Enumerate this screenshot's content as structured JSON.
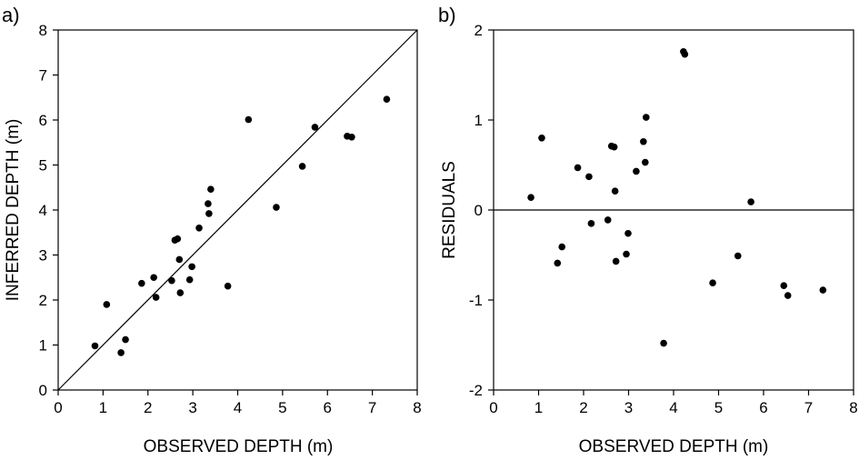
{
  "chart_data": [
    {
      "type": "scatter",
      "panel_label": "a)",
      "xlabel": "OBSERVED DEPTH (m)",
      "ylabel": "INFERRED DEPTH (m)",
      "xlim": [
        0,
        8
      ],
      "ylim": [
        0,
        8
      ],
      "xticks": [
        "0",
        "1",
        "2",
        "3",
        "4",
        "5",
        "6",
        "7",
        "8"
      ],
      "yticks": [
        "0",
        "1",
        "2",
        "3",
        "4",
        "5",
        "6",
        "7",
        "8"
      ],
      "reference_line": "y = x (1:1 line)",
      "points": [
        {
          "x": 0.82,
          "y": 0.98
        },
        {
          "x": 1.08,
          "y": 1.9
        },
        {
          "x": 1.4,
          "y": 0.83
        },
        {
          "x": 1.5,
          "y": 1.12
        },
        {
          "x": 1.86,
          "y": 2.37
        },
        {
          "x": 2.13,
          "y": 2.5
        },
        {
          "x": 2.18,
          "y": 2.06
        },
        {
          "x": 2.53,
          "y": 2.43
        },
        {
          "x": 2.6,
          "y": 3.33
        },
        {
          "x": 2.66,
          "y": 3.36
        },
        {
          "x": 2.7,
          "y": 2.9
        },
        {
          "x": 2.72,
          "y": 2.16
        },
        {
          "x": 2.93,
          "y": 2.45
        },
        {
          "x": 2.98,
          "y": 2.74
        },
        {
          "x": 3.14,
          "y": 3.6
        },
        {
          "x": 3.34,
          "y": 4.14
        },
        {
          "x": 3.36,
          "y": 3.92
        },
        {
          "x": 3.4,
          "y": 4.46
        },
        {
          "x": 3.78,
          "y": 2.31
        },
        {
          "x": 4.24,
          "y": 6.01
        },
        {
          "x": 4.86,
          "y": 4.06
        },
        {
          "x": 5.44,
          "y": 4.97
        },
        {
          "x": 5.72,
          "y": 5.84
        },
        {
          "x": 6.44,
          "y": 5.64
        },
        {
          "x": 6.54,
          "y": 5.62
        },
        {
          "x": 7.32,
          "y": 6.46
        }
      ]
    },
    {
      "type": "scatter",
      "panel_label": "b)",
      "xlabel": "OBSERVED DEPTH (m)",
      "ylabel": "RESIDUALS",
      "xlim": [
        0,
        8
      ],
      "ylim": [
        -2,
        2
      ],
      "xticks": [
        "0",
        "1",
        "2",
        "3",
        "4",
        "5",
        "6",
        "7",
        "8"
      ],
      "yticks": [
        "-2",
        "-1",
        "0",
        "1",
        "2"
      ],
      "reference_line": "y = 0",
      "points": [
        {
          "x": 0.83,
          "y": 0.14
        },
        {
          "x": 1.07,
          "y": 0.8
        },
        {
          "x": 1.42,
          "y": -0.59
        },
        {
          "x": 1.52,
          "y": -0.41
        },
        {
          "x": 1.87,
          "y": 0.47
        },
        {
          "x": 2.12,
          "y": 0.37
        },
        {
          "x": 2.17,
          "y": -0.15
        },
        {
          "x": 2.54,
          "y": -0.11
        },
        {
          "x": 2.62,
          "y": 0.71
        },
        {
          "x": 2.68,
          "y": 0.7
        },
        {
          "x": 2.7,
          "y": 0.21
        },
        {
          "x": 2.72,
          "y": -0.57
        },
        {
          "x": 2.95,
          "y": -0.49
        },
        {
          "x": 2.99,
          "y": -0.26
        },
        {
          "x": 3.17,
          "y": 0.43
        },
        {
          "x": 3.33,
          "y": 0.76
        },
        {
          "x": 3.37,
          "y": 0.53
        },
        {
          "x": 3.39,
          "y": 1.03
        },
        {
          "x": 3.78,
          "y": -1.48
        },
        {
          "x": 4.22,
          "y": 1.76
        },
        {
          "x": 4.25,
          "y": 1.73
        },
        {
          "x": 4.87,
          "y": -0.81
        },
        {
          "x": 5.43,
          "y": -0.51
        },
        {
          "x": 5.72,
          "y": 0.09
        },
        {
          "x": 6.45,
          "y": -0.84
        },
        {
          "x": 6.54,
          "y": -0.95
        },
        {
          "x": 7.32,
          "y": -0.89
        }
      ]
    }
  ]
}
